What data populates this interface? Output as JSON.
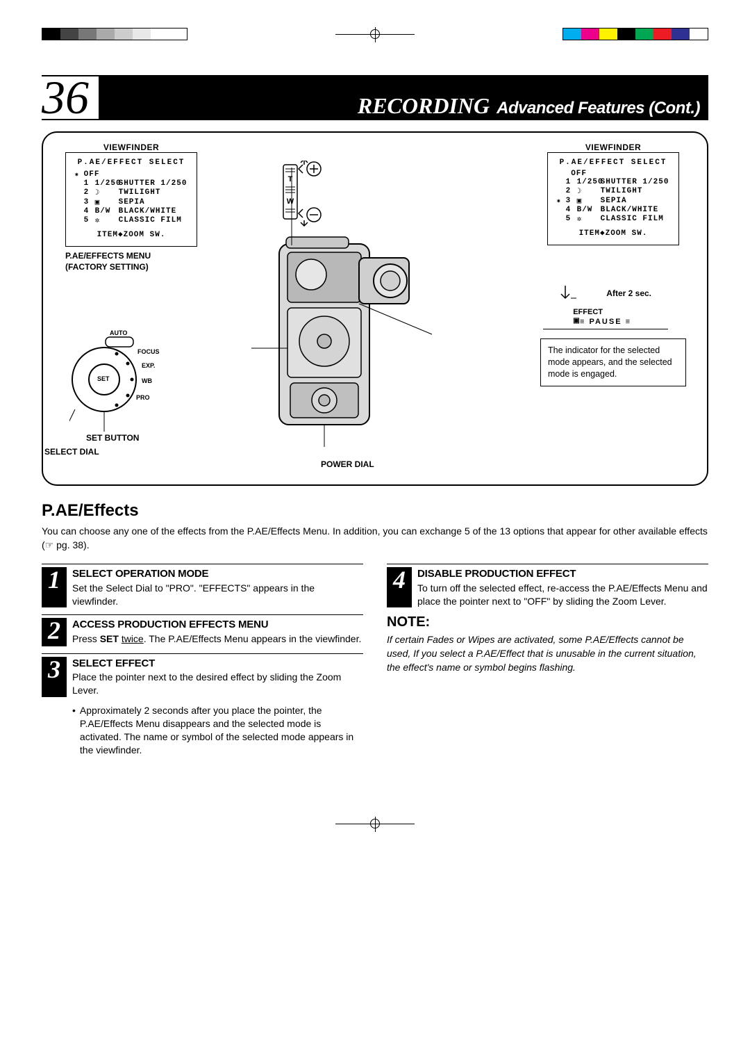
{
  "colorbars": {
    "left": [
      "#000000",
      "#444444",
      "#777777",
      "#aaaaaa",
      "#cccccc",
      "#e8e8e8",
      "#ffffff",
      "#ffffff"
    ],
    "right": [
      "#00aeef",
      "#ec008c",
      "#fff200",
      "#000000",
      "#00a651",
      "#ed1c24",
      "#2e3192",
      "#ffffff"
    ]
  },
  "pageNumber": "36",
  "header": {
    "recording": "RECORDING",
    "sub": "Advanced Features (Cont.)"
  },
  "diagram": {
    "viewfinder_label": "VIEWFINDER",
    "menu_title": "P.AE/EFFECT SELECT",
    "off": "OFF",
    "rows": [
      {
        "n": "1",
        "icon": "1/250",
        "label": "SHUTTER 1/250"
      },
      {
        "n": "2",
        "icon": "☽",
        "label": "TWILIGHT"
      },
      {
        "n": "3",
        "icon": "▣",
        "label": "SEPIA"
      },
      {
        "n": "4",
        "icon": "B/W",
        "label": "BLACK/WHITE"
      },
      {
        "n": "5",
        "icon": "✲",
        "label": "CLASSIC FILM"
      }
    ],
    "menu_foot": "ITEM◆ZOOM SW.",
    "left_caption": "P.AE/EFFECTS MENU\n(FACTORY SETTING)",
    "dial": {
      "auto": "AUTO",
      "focus": "FOCUS",
      "exp": "EXP.",
      "wb": "WB",
      "pro": "PRO",
      "set": "SET"
    },
    "set_button": "SET BUTTON",
    "select_dial": "SELECT DIAL",
    "power_dial": "POWER DIAL",
    "after2": "After 2 sec.",
    "effect": "EFFECT",
    "pause_line": "≡ PAUSE ≡",
    "info": "The indicator for the selected mode appears, and the selected mode is engaged."
  },
  "section": {
    "title": "P.AE/Effects",
    "intro_a": "You can choose any one of the effects from the P.AE/Effects Menu. In addition, you can exchange 5 of the 13 options that appear for other available effects (",
    "intro_b": " pg. 38).",
    "hand": "☞"
  },
  "steps": [
    {
      "num": "1",
      "title": "SELECT OPERATION MODE",
      "body": "Set the Select Dial to \"PRO\". \"EFFECTS\" appears in the viewfinder."
    },
    {
      "num": "2",
      "title": "ACCESS PRODUCTION EFFECTS MENU",
      "body_a": "Press ",
      "set": "SET",
      "twice": "twice",
      "body_b": ". The P.AE/Effects Menu appears in the viewfinder."
    },
    {
      "num": "3",
      "title": "SELECT EFFECT",
      "body": "Place the pointer next to the desired effect by sliding the Zoom Lever."
    },
    {
      "num": "4",
      "title": "DISABLE PRODUCTION EFFECT",
      "body": "To turn off the selected effect, re-access the P.AE/Effects Menu and place the pointer next to \"OFF\" by sliding the Zoom Lever."
    }
  ],
  "bullet": "Approximately 2 seconds after you place the pointer, the P.AE/Effects Menu disappears and the selected mode is activated. The name or symbol of the selected mode appears in the viewfinder.",
  "note": {
    "head": "NOTE:",
    "body": "If certain Fades or Wipes are activated, some P.AE/Effects cannot be used, If you select a P.AE/Effect that is unusable in the current situation, the effect's name or symbol begins flashing."
  }
}
